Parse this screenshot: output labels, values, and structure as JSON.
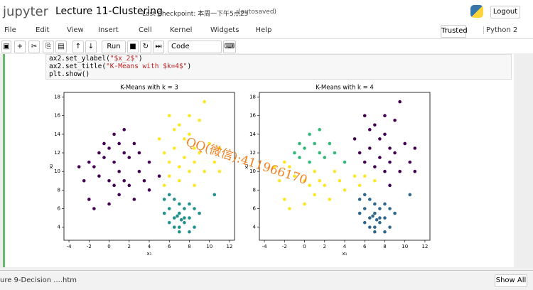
{
  "header": {
    "logo": "jupyter",
    "notebook": "Lecture 11-Clustering",
    "checkpoint": "Last Checkpoint: 本周一下午5点25",
    "autosaved": "(autosaved)",
    "logout": "Logout"
  },
  "menu": [
    "File",
    "Edit",
    "View",
    "Insert",
    "Cell",
    "Kernel",
    "Widgets",
    "Help"
  ],
  "status": {
    "trusted": "Trusted",
    "kernel": "Python 2"
  },
  "toolbar": {
    "run": "Run",
    "cell_type": "Code"
  },
  "code_lines": [
    [
      "ax2.set_ylabel(",
      "\"$x_2$\"",
      ")"
    ],
    [
      "ax2.set_title(",
      "\"K-Means with $k=4$\"",
      ")"
    ],
    [
      "plt.show()"
    ]
  ],
  "watermark": "QQ(微信):411966170",
  "footer": {
    "download": "ure 9-Decision ....htm",
    "show_all": "Show All"
  },
  "chart_data": [
    {
      "type": "scatter",
      "title": "K-Means with k = 3",
      "xlabel": "x₁",
      "ylabel": "x₂",
      "xlim": [
        -4.5,
        12.5
      ],
      "ylim": [
        2.6,
        18.5
      ],
      "xticks": [
        -4,
        -2,
        0,
        2,
        4,
        6,
        8,
        10,
        12
      ],
      "yticks": [
        4,
        6,
        8,
        10,
        12,
        14,
        16,
        18
      ],
      "series": [
        {
          "color": "#440154",
          "x": [
            -2,
            -1.5,
            -1,
            -0.5,
            0,
            0.5,
            1,
            1.5,
            2,
            2.5,
            3,
            -1,
            0,
            0.5,
            1,
            1.5,
            2,
            3,
            3.5,
            4,
            -2.5,
            -3,
            -2,
            -1.5,
            0,
            1,
            2.5,
            4,
            5,
            0.5,
            -0.5,
            1.5
          ],
          "y": [
            11,
            10.5,
            12,
            13,
            12.5,
            14,
            13,
            12,
            11.5,
            13,
            12,
            9.5,
            9,
            8.5,
            10,
            9,
            8.5,
            10,
            9,
            11,
            9,
            10.5,
            7,
            6,
            6.5,
            7.5,
            7,
            8,
            9.5,
            11,
            11.5,
            14.5
          ]
        },
        {
          "color": "#fde725",
          "x": [
            6,
            6.5,
            7,
            7.5,
            8,
            8.5,
            9,
            9.5,
            10,
            5.5,
            6,
            6.5,
            7,
            7.5,
            8,
            8.5,
            9,
            9.5,
            10.5,
            11,
            7,
            6,
            5,
            8,
            11,
            5.5,
            8.5
          ],
          "y": [
            16,
            14.5,
            15,
            13.5,
            14,
            12.5,
            15.5,
            17.5,
            13,
            12,
            11,
            12.5,
            10.5,
            11.5,
            10,
            11,
            12,
            10,
            11,
            12.5,
            9,
            9.5,
            13.5,
            16,
            10,
            8.5,
            8.5
          ]
        },
        {
          "color": "#21918c",
          "x": [
            6,
            6.5,
            7,
            7.5,
            8,
            6.5,
            7,
            7.5,
            8,
            6,
            7,
            6.5,
            5.5,
            8.5,
            7,
            7.5,
            6,
            8,
            9,
            5.5,
            6.8,
            7.2,
            10.5,
            8.5
          ],
          "y": [
            6,
            5,
            5.5,
            4.5,
            5,
            4,
            3.5,
            6,
            6.5,
            4.5,
            6.5,
            7,
            5.5,
            4,
            4,
            5,
            7.5,
            3.5,
            5.5,
            7,
            5.2,
            4.8,
            7.5,
            6
          ]
        }
      ]
    },
    {
      "type": "scatter",
      "title": "K-Means with k = 4",
      "xlabel": "x₁",
      "ylabel": "x₂",
      "xlim": [
        -4.5,
        12.5
      ],
      "ylim": [
        2.6,
        18.5
      ],
      "xticks": [
        -4,
        -2,
        0,
        2,
        4,
        6,
        8,
        10,
        12
      ],
      "yticks": [
        4,
        6,
        8,
        10,
        12,
        14,
        16,
        18
      ],
      "series": [
        {
          "color": "#440154",
          "x": [
            6,
            6.5,
            7,
            7.5,
            8,
            8.5,
            9,
            9.5,
            10,
            5.5,
            6,
            6.5,
            7,
            7.5,
            8,
            8.5,
            9,
            9.5,
            10.5,
            11,
            5,
            8,
            11,
            8.5
          ],
          "y": [
            16,
            14.5,
            15,
            13.5,
            14,
            12.5,
            15.5,
            17.5,
            13,
            12,
            11,
            12.5,
            10.5,
            11.5,
            10,
            11,
            12,
            10,
            11,
            12.5,
            13.5,
            16,
            10,
            8.5
          ]
        },
        {
          "color": "#35b779",
          "x": [
            -1,
            -0.5,
            0,
            0.5,
            1,
            1.5,
            2,
            2.5,
            3,
            4,
            0.5,
            -0.5,
            1.5
          ],
          "y": [
            12,
            13,
            12.5,
            14,
            13,
            12,
            11.5,
            13,
            12,
            11,
            11,
            11.5,
            14.5
          ]
        },
        {
          "color": "#fde725",
          "x": [
            -2,
            -1.5,
            -1,
            0,
            0.5,
            1,
            1.5,
            2,
            3,
            3.5,
            -2.5,
            -3,
            -2,
            -1.5,
            0,
            1,
            2.5,
            4,
            5,
            6,
            5.5,
            7
          ],
          "y": [
            11,
            10.5,
            9.5,
            9,
            8.5,
            10,
            9,
            8.5,
            10,
            9,
            9,
            10.5,
            7,
            6,
            6.5,
            7.5,
            7,
            8,
            9.5,
            9.5,
            8.5,
            9
          ]
        },
        {
          "color": "#31688e",
          "x": [
            6,
            6.5,
            7,
            7.5,
            8,
            6.5,
            7,
            7.5,
            8,
            6,
            7,
            6.5,
            5.5,
            8.5,
            7,
            7.5,
            6,
            8,
            9,
            5.5,
            6.8,
            7.2,
            10.5,
            8.5
          ],
          "y": [
            6,
            5,
            5.5,
            4.5,
            5,
            4,
            3.5,
            6,
            6.5,
            4.5,
            6.5,
            7,
            5.5,
            4,
            4,
            5,
            7.5,
            3.5,
            5.5,
            7,
            5.2,
            4.8,
            7.5,
            6
          ]
        }
      ]
    }
  ]
}
